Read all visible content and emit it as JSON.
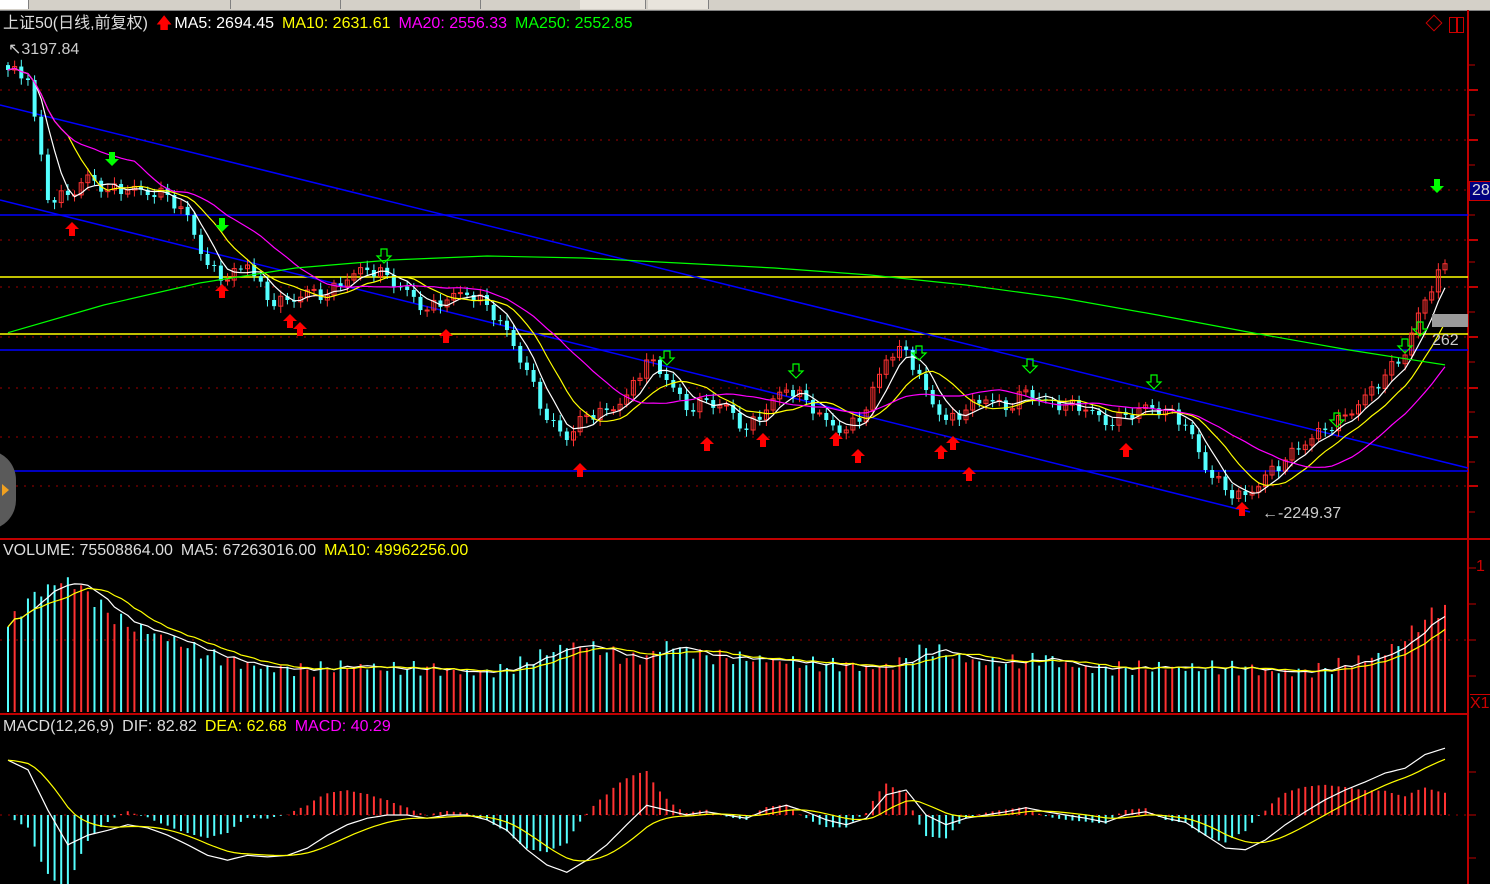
{
  "price_panel": {
    "title": "上证50(日线,前复权)",
    "ma5": "MA5: 2694.45",
    "ma10": "MA10: 2631.61",
    "ma20": "MA20: 2556.33",
    "ma250": "MA250: 2552.85",
    "high_label": "3197.84",
    "low_label": "2249.37",
    "axis_box_label": "28",
    "right_label": "262"
  },
  "volume_panel": {
    "volume": "VOLUME: 75508864.00",
    "ma5": "MA5: 67263016.00",
    "ma10": "MA10: 49962256.00",
    "axis_label": "1",
    "corner_label": "X1"
  },
  "macd_panel": {
    "title": "MACD(12,26,9)",
    "dif": "DIF: 82.82",
    "dea": "DEA: 62.68",
    "macd": "MACD: 40.29"
  },
  "colors": {
    "up": "#ff3232",
    "down": "#54ffff",
    "ma5": "#ffffff",
    "ma10": "#ffff00",
    "ma20": "#ff00ff",
    "ma250": "#00ff00",
    "axis": "#c00000",
    "trendline": "#0000ff"
  },
  "icons": [
    "signal-up-arrow-icon",
    "diamond-icon",
    "panel-toggle-icon",
    "buy-arrow-icon",
    "sell-arrow-icon"
  ],
  "chart_data": {
    "type": "candlestick",
    "high": 3197.84,
    "low": 2249.37,
    "close": [
      3156.9,
      3136.4,
      2890.5,
      2900.8,
      2941.8,
      2911.0,
      2911.0,
      2900.8,
      2900.8,
      2859.8,
      2757.4,
      2726.6,
      2757.4,
      2685.7,
      2685.7,
      2706.2,
      2695.9,
      2726.6,
      2747.1,
      2736.9,
      2706.2,
      2665.2,
      2685.7,
      2695.9,
      2675.5,
      2624.2,
      2542.3,
      2439.9,
      2398.9,
      2450.1,
      2460.3,
      2491.1,
      2562.8,
      2521.8,
      2460.3,
      2480.8,
      2470.6,
      2419.4,
      2460.3,
      2501.3,
      2480.8,
      2439.9,
      2419.4,
      2460.3,
      2562.8,
      2583.3,
      2501.3,
      2439.9,
      2460.3,
      2480.8,
      2460.3,
      2501.3,
      2480.8,
      2470.6,
      2460.3,
      2429.6,
      2450.1,
      2470.6,
      2460.3,
      2429.6,
      2337.4,
      2296.4,
      2286.2,
      2327.2,
      2357.9,
      2388.6,
      2419.4,
      2450.1,
      2491.1,
      2532.0,
      2573.0,
      2685.7,
      2760.0
    ],
    "ma250": [
      2618.8,
      2675.5,
      2720.5,
      2751.3,
      2767.7,
      2775.8,
      2771.7,
      2761.5,
      2751.3,
      2736.9,
      2716.4,
      2689.8,
      2655.0,
      2618.1,
      2583.3,
      2552.85
    ],
    "horizontal_lines": {
      "blue": [
        2859.8,
        2583.3,
        2335.4
      ],
      "yellow": [
        2732.8,
        2616.0
      ]
    },
    "volume_millions": [
      60,
      80,
      90,
      95,
      85,
      70,
      60,
      55,
      50,
      45,
      40,
      38,
      35,
      33,
      32,
      30,
      30,
      31,
      30,
      29,
      30,
      32,
      31,
      30,
      30,
      31,
      35,
      40,
      45,
      45,
      42,
      38,
      40,
      50,
      45,
      40,
      38,
      36,
      35,
      34,
      33,
      34,
      35,
      33,
      34,
      38,
      45,
      40,
      35,
      33,
      34,
      36,
      40,
      35,
      33,
      32,
      31,
      30,
      30,
      29,
      30,
      31,
      32,
      31,
      30,
      30,
      31,
      33,
      35,
      40,
      50,
      65,
      75.5
    ],
    "macd_dif": [
      68,
      56,
      6,
      -37,
      -25,
      -19,
      -12,
      -16,
      -25,
      -37,
      -50,
      -56,
      -50,
      -52,
      -50,
      -41,
      -25,
      -12,
      -4,
      0,
      0,
      -4,
      0,
      0,
      -6,
      -19,
      -43,
      -62,
      -71,
      -56,
      -37,
      -12,
      12,
      6,
      0,
      4,
      0,
      -4,
      6,
      12,
      4,
      -6,
      -12,
      -4,
      25,
      31,
      0,
      -12,
      -4,
      0,
      4,
      9,
      4,
      0,
      -4,
      -9,
      0,
      4,
      -4,
      -9,
      -25,
      -41,
      -43,
      -31,
      -12,
      4,
      19,
      31,
      41,
      52,
      58,
      75,
      82.82
    ]
  }
}
